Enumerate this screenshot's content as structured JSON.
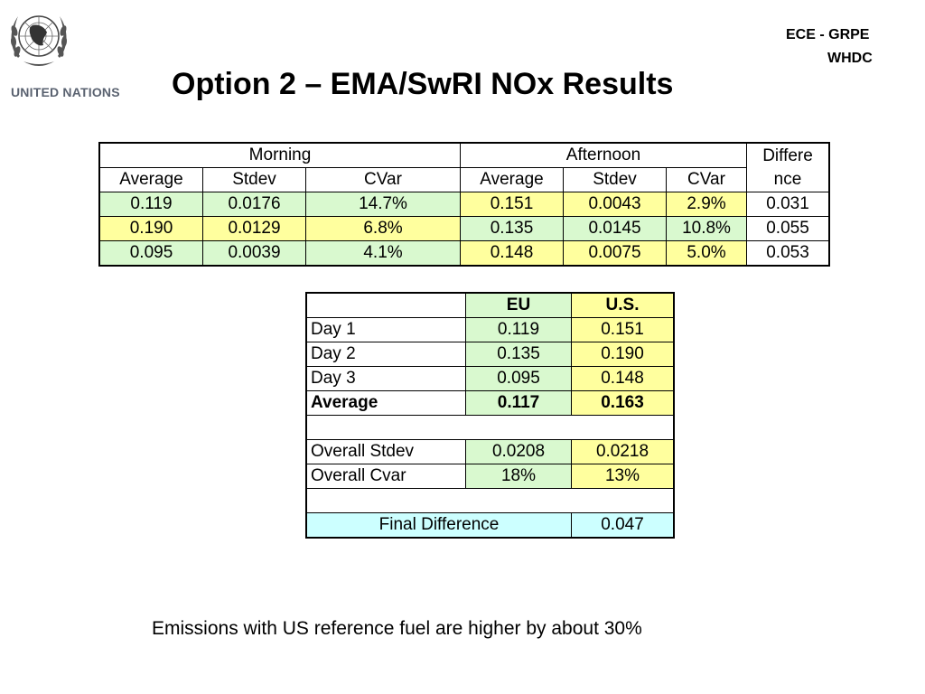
{
  "header": {
    "org_name": "UNITED NATIONS",
    "title": "Option 2 – EMA/SwRI NOx Results",
    "right_line1": "ECE - GRPE",
    "right_line2": "WHDC"
  },
  "table1": {
    "group_headers": {
      "morning": "Morning",
      "afternoon": "Afternoon",
      "difference_line1": "Differe",
      "difference_line2": "nce"
    },
    "sub_headers": [
      "Average",
      "Stdev",
      "CVar",
      "Average",
      "Stdev",
      "CVar"
    ],
    "rows": [
      {
        "cells": [
          "0.119",
          "0.0176",
          "14.7%",
          "0.151",
          "0.0043",
          "2.9%",
          "0.031"
        ]
      },
      {
        "cells": [
          "0.190",
          "0.0129",
          "6.8%",
          "0.135",
          "0.0145",
          "10.8%",
          "0.055"
        ]
      },
      {
        "cells": [
          "0.095",
          "0.0039",
          "4.1%",
          "0.148",
          "0.0075",
          "5.0%",
          "0.053"
        ]
      }
    ]
  },
  "table2": {
    "headers": [
      "",
      "EU",
      "U.S."
    ],
    "day_rows": [
      [
        "Day 1",
        "0.119",
        "0.151"
      ],
      [
        "Day 2",
        "0.135",
        "0.190"
      ],
      [
        "Day 3",
        "0.095",
        "0.148"
      ]
    ],
    "average_row": [
      "Average",
      "0.117",
      "0.163"
    ],
    "stdev_row": [
      "Overall Stdev",
      "0.0208",
      "0.0218"
    ],
    "cvar_row": [
      "Overall Cvar",
      "18%",
      "13%"
    ],
    "final_row": [
      "Final Difference",
      "0.047"
    ]
  },
  "footer": {
    "text": "Emissions with US reference fuel are higher by about 30%"
  },
  "colors": {
    "green": "#d9f9cf",
    "yellow": "#ffff9e",
    "cyan": "#ccffff",
    "org_gray": "#5a6270"
  },
  "icons": {
    "logo": "united-nations-emblem-icon"
  }
}
